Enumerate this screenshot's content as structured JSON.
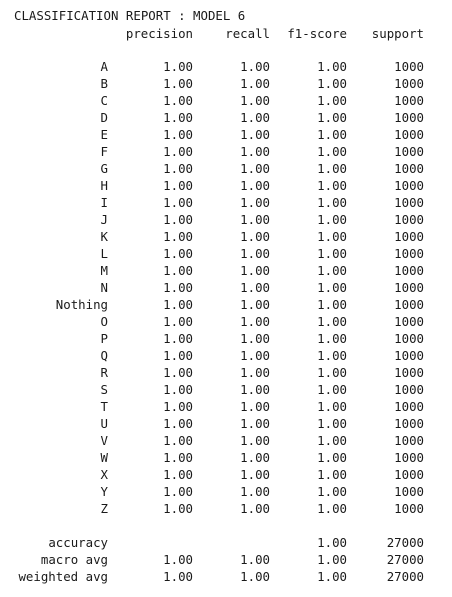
{
  "title": "CLASSIFICATION REPORT : MODEL 6",
  "headers": {
    "precision": "precision",
    "recall": "recall",
    "f1": "f1-score",
    "support": "support"
  },
  "rows": [
    {
      "label": "A",
      "precision": "1.00",
      "recall": "1.00",
      "f1": "1.00",
      "support": "1000"
    },
    {
      "label": "B",
      "precision": "1.00",
      "recall": "1.00",
      "f1": "1.00",
      "support": "1000"
    },
    {
      "label": "C",
      "precision": "1.00",
      "recall": "1.00",
      "f1": "1.00",
      "support": "1000"
    },
    {
      "label": "D",
      "precision": "1.00",
      "recall": "1.00",
      "f1": "1.00",
      "support": "1000"
    },
    {
      "label": "E",
      "precision": "1.00",
      "recall": "1.00",
      "f1": "1.00",
      "support": "1000"
    },
    {
      "label": "F",
      "precision": "1.00",
      "recall": "1.00",
      "f1": "1.00",
      "support": "1000"
    },
    {
      "label": "G",
      "precision": "1.00",
      "recall": "1.00",
      "f1": "1.00",
      "support": "1000"
    },
    {
      "label": "H",
      "precision": "1.00",
      "recall": "1.00",
      "f1": "1.00",
      "support": "1000"
    },
    {
      "label": "I",
      "precision": "1.00",
      "recall": "1.00",
      "f1": "1.00",
      "support": "1000"
    },
    {
      "label": "J",
      "precision": "1.00",
      "recall": "1.00",
      "f1": "1.00",
      "support": "1000"
    },
    {
      "label": "K",
      "precision": "1.00",
      "recall": "1.00",
      "f1": "1.00",
      "support": "1000"
    },
    {
      "label": "L",
      "precision": "1.00",
      "recall": "1.00",
      "f1": "1.00",
      "support": "1000"
    },
    {
      "label": "M",
      "precision": "1.00",
      "recall": "1.00",
      "f1": "1.00",
      "support": "1000"
    },
    {
      "label": "N",
      "precision": "1.00",
      "recall": "1.00",
      "f1": "1.00",
      "support": "1000"
    },
    {
      "label": "Nothing",
      "precision": "1.00",
      "recall": "1.00",
      "f1": "1.00",
      "support": "1000"
    },
    {
      "label": "O",
      "precision": "1.00",
      "recall": "1.00",
      "f1": "1.00",
      "support": "1000"
    },
    {
      "label": "P",
      "precision": "1.00",
      "recall": "1.00",
      "f1": "1.00",
      "support": "1000"
    },
    {
      "label": "Q",
      "precision": "1.00",
      "recall": "1.00",
      "f1": "1.00",
      "support": "1000"
    },
    {
      "label": "R",
      "precision": "1.00",
      "recall": "1.00",
      "f1": "1.00",
      "support": "1000"
    },
    {
      "label": "S",
      "precision": "1.00",
      "recall": "1.00",
      "f1": "1.00",
      "support": "1000"
    },
    {
      "label": "T",
      "precision": "1.00",
      "recall": "1.00",
      "f1": "1.00",
      "support": "1000"
    },
    {
      "label": "U",
      "precision": "1.00",
      "recall": "1.00",
      "f1": "1.00",
      "support": "1000"
    },
    {
      "label": "V",
      "precision": "1.00",
      "recall": "1.00",
      "f1": "1.00",
      "support": "1000"
    },
    {
      "label": "W",
      "precision": "1.00",
      "recall": "1.00",
      "f1": "1.00",
      "support": "1000"
    },
    {
      "label": "X",
      "precision": "1.00",
      "recall": "1.00",
      "f1": "1.00",
      "support": "1000"
    },
    {
      "label": "Y",
      "precision": "1.00",
      "recall": "1.00",
      "f1": "1.00",
      "support": "1000"
    },
    {
      "label": "Z",
      "precision": "1.00",
      "recall": "1.00",
      "f1": "1.00",
      "support": "1000"
    }
  ],
  "summary": [
    {
      "label": "accuracy",
      "precision": "",
      "recall": "",
      "f1": "1.00",
      "support": "27000"
    },
    {
      "label": "macro avg",
      "precision": "1.00",
      "recall": "1.00",
      "f1": "1.00",
      "support": "27000"
    },
    {
      "label": "weighted avg",
      "precision": "1.00",
      "recall": "1.00",
      "f1": "1.00",
      "support": "27000"
    }
  ]
}
